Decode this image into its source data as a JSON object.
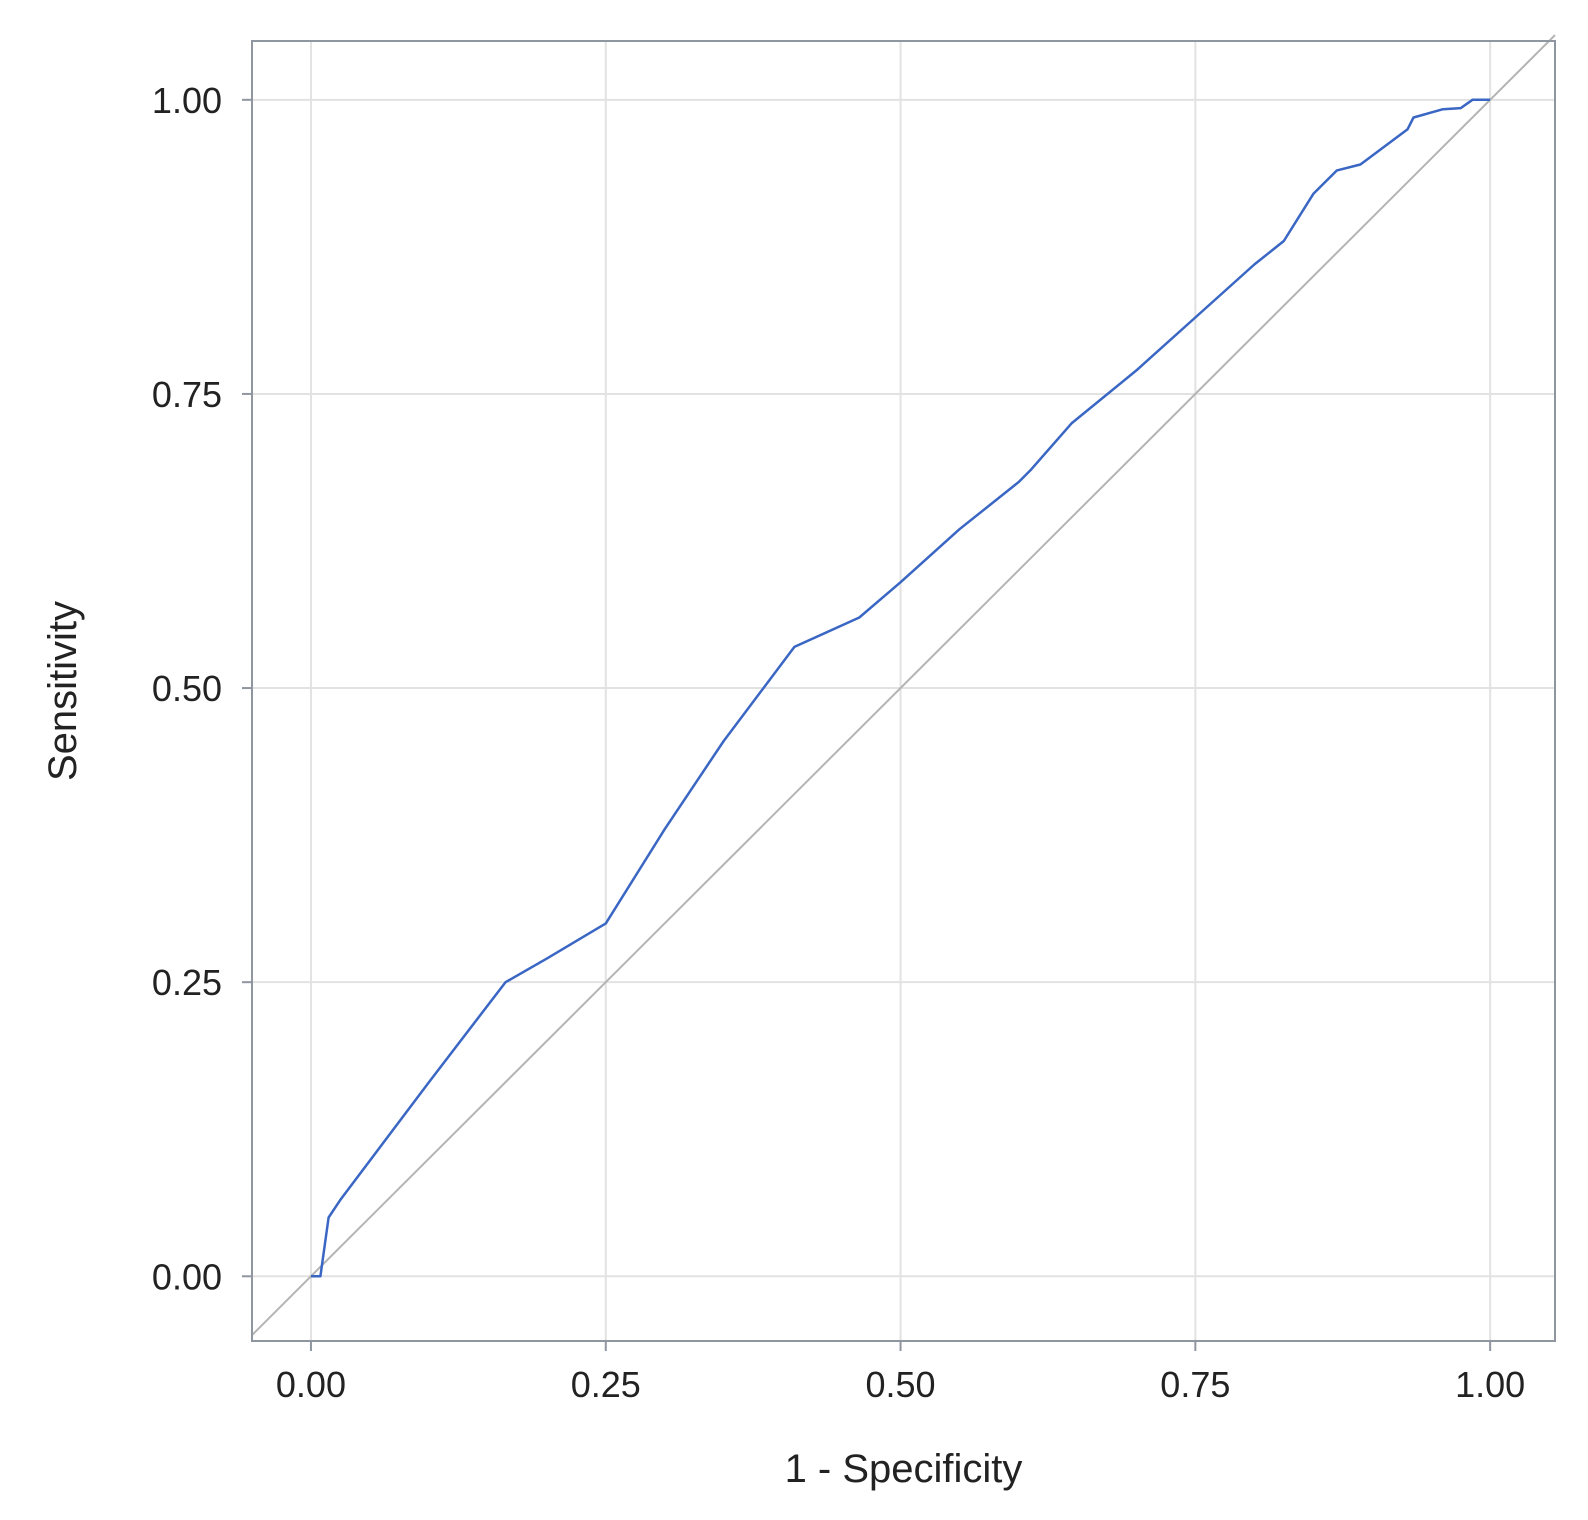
{
  "chart_data": {
    "type": "line",
    "title": "",
    "xlabel": "1 - Specificity",
    "ylabel": "Sensitivity",
    "xlim": [
      -0.05,
      1.055
    ],
    "ylim": [
      -0.055,
      1.05
    ],
    "grid": true,
    "x_ticks": [
      0,
      0.25,
      0.5,
      0.75,
      1
    ],
    "x_tick_labels": [
      "0.00",
      "0.25",
      "0.50",
      "0.75",
      "1.00"
    ],
    "y_ticks": [
      0,
      0.25,
      0.5,
      0.75,
      1
    ],
    "y_tick_labels": [
      "0.00",
      "0.25",
      "0.50",
      "0.75",
      "1.00"
    ],
    "colors": {
      "curve": "#3a66c4",
      "reference": "#b4b4b4",
      "grid": "#e2e2e2",
      "frame": "#8f96a0"
    },
    "series": [
      {
        "role": "roc-curve",
        "x": [
          0,
          0.008,
          0.015,
          0.025,
          0.1,
          0.165,
          0.2,
          0.25,
          0.3,
          0.35,
          0.41,
          0.465,
          0.5,
          0.55,
          0.6,
          0.61,
          0.645,
          0.7,
          0.75,
          0.8,
          0.825,
          0.85,
          0.87,
          0.89,
          0.91,
          0.93,
          0.935,
          0.96,
          0.975,
          0.985,
          1.0
        ],
        "y": [
          0,
          0,
          0.05,
          0.065,
          0.165,
          0.25,
          0.27,
          0.3,
          0.38,
          0.455,
          0.535,
          0.56,
          0.59,
          0.635,
          0.675,
          0.685,
          0.725,
          0.77,
          0.815,
          0.86,
          0.88,
          0.92,
          0.94,
          0.945,
          0.96,
          0.975,
          0.985,
          0.992,
          0.993,
          1.0,
          1.0
        ]
      },
      {
        "role": "reference-diagonal",
        "x": [
          -0.05,
          1.055
        ],
        "y": [
          -0.05,
          1.055
        ]
      }
    ]
  }
}
